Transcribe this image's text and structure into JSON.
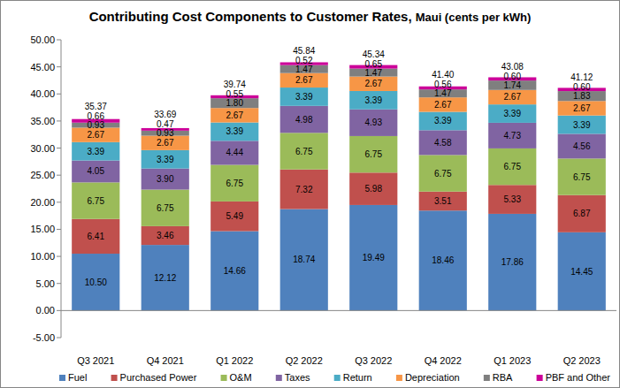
{
  "chart_data": {
    "type": "bar",
    "title": "Contributing Cost Components to Customer Rates,",
    "subtitle": "Maui (cents per kWh)",
    "categories": [
      "Q3 2021",
      "Q4 2021",
      "Q1 2022",
      "Q2 2022",
      "Q3 2022",
      "Q4 2022",
      "Q1 2023",
      "Q2 2023"
    ],
    "stacked": true,
    "data_labels": true,
    "grid": false,
    "legend": "bottom",
    "ylim": [
      -5,
      50
    ],
    "yticks": [
      {
        "value": -5,
        "label": "-5.00"
      },
      {
        "value": 0,
        "label": "0.00"
      },
      {
        "value": 5,
        "label": "5.00"
      },
      {
        "value": 10,
        "label": "10.00"
      },
      {
        "value": 15,
        "label": "15.00"
      },
      {
        "value": 20,
        "label": "20.00"
      },
      {
        "value": 25,
        "label": "25.00"
      },
      {
        "value": 30,
        "label": "30.00"
      },
      {
        "value": 35,
        "label": "35.00"
      },
      {
        "value": 40,
        "label": "40.00"
      },
      {
        "value": 45,
        "label": "45.00"
      },
      {
        "value": 50,
        "label": "50.00"
      }
    ],
    "series": [
      {
        "name": "Fuel",
        "color": "#4f81bd",
        "values": [
          10.5,
          12.12,
          14.66,
          18.74,
          19.49,
          18.46,
          17.86,
          14.45
        ],
        "value_labels": [
          "10.50",
          "12.12",
          "14.66",
          "18.74",
          "19.49",
          "18.46",
          "17.86",
          "14.45"
        ]
      },
      {
        "name": "Purchased Power",
        "color": "#c0504d",
        "values": [
          6.41,
          3.46,
          5.49,
          7.32,
          5.98,
          3.51,
          5.33,
          6.87
        ],
        "value_labels": [
          "6.41",
          "3.46",
          "5.49",
          "7.32",
          "5.98",
          "3.51",
          "5.33",
          "6.87"
        ]
      },
      {
        "name": "O&M",
        "color": "#9bbb59",
        "values": [
          6.75,
          6.75,
          6.75,
          6.75,
          6.75,
          6.75,
          6.75,
          6.75
        ],
        "value_labels": [
          "6.75",
          "6.75",
          "6.75",
          "6.75",
          "6.75",
          "6.75",
          "6.75",
          "6.75"
        ]
      },
      {
        "name": "Taxes",
        "color": "#8064a2",
        "values": [
          4.05,
          3.9,
          4.44,
          4.98,
          4.93,
          4.58,
          4.73,
          4.56
        ],
        "value_labels": [
          "4.05",
          "3.90",
          "4.44",
          "4.98",
          "4.93",
          "4.58",
          "4.73",
          "4.56"
        ]
      },
      {
        "name": "Return",
        "color": "#4bacc6",
        "values": [
          3.39,
          3.39,
          3.39,
          3.39,
          3.39,
          3.39,
          3.39,
          3.39
        ],
        "value_labels": [
          "3.39",
          "3.39",
          "3.39",
          "3.39",
          "3.39",
          "3.39",
          "3.39",
          "3.39"
        ]
      },
      {
        "name": "Depreciation",
        "color": "#f79646",
        "values": [
          2.67,
          2.67,
          2.67,
          2.67,
          2.67,
          2.67,
          2.67,
          2.67
        ],
        "value_labels": [
          "2.67",
          "2.67",
          "2.67",
          "2.67",
          "2.67",
          "2.67",
          "2.67",
          "2.67"
        ]
      },
      {
        "name": "RBA",
        "color": "#7f7f7f",
        "values": [
          0.93,
          0.93,
          1.8,
          1.47,
          1.47,
          1.47,
          1.74,
          1.83
        ],
        "value_labels": [
          "0.93",
          "0.93",
          "1.80",
          "1.47",
          "1.47",
          "1.47",
          "1.74",
          "1.83"
        ]
      },
      {
        "name": "PBF and Other",
        "color": "#cc0099",
        "values": [
          0.66,
          0.47,
          0.55,
          0.52,
          0.65,
          0.56,
          0.6,
          0.6
        ],
        "value_labels": [
          "0.66",
          "0.47",
          "0.55",
          "0.52",
          "0.65",
          "0.56",
          "0.60",
          "0.60"
        ]
      }
    ],
    "totals": [
      35.37,
      33.69,
      39.74,
      45.84,
      45.34,
      41.4,
      43.08,
      41.12
    ],
    "total_labels": [
      "35.37",
      "33.69",
      "39.74",
      "45.84",
      "45.34",
      "41.40",
      "43.08",
      "41.12"
    ]
  }
}
